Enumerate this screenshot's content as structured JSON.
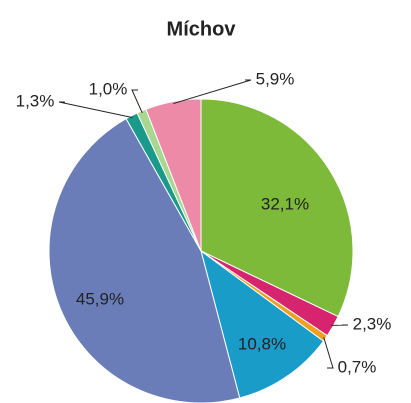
{
  "chart_data": {
    "type": "pie",
    "title": "Míchov",
    "values": [
      32.1,
      2.3,
      0.7,
      10.8,
      45.9,
      1.3,
      1.0,
      5.9
    ],
    "value_labels": [
      "32,1%",
      "2,3%",
      "0,7%",
      "10,8%",
      "45,9%",
      "1,3%",
      "1,0%",
      "5,9%"
    ],
    "colors": [
      "#7dba3a",
      "#d6246e",
      "#f0a020",
      "#1a9cc8",
      "#6a7db8",
      "#1a9a8a",
      "#a8d890",
      "#ec8aa8"
    ]
  }
}
